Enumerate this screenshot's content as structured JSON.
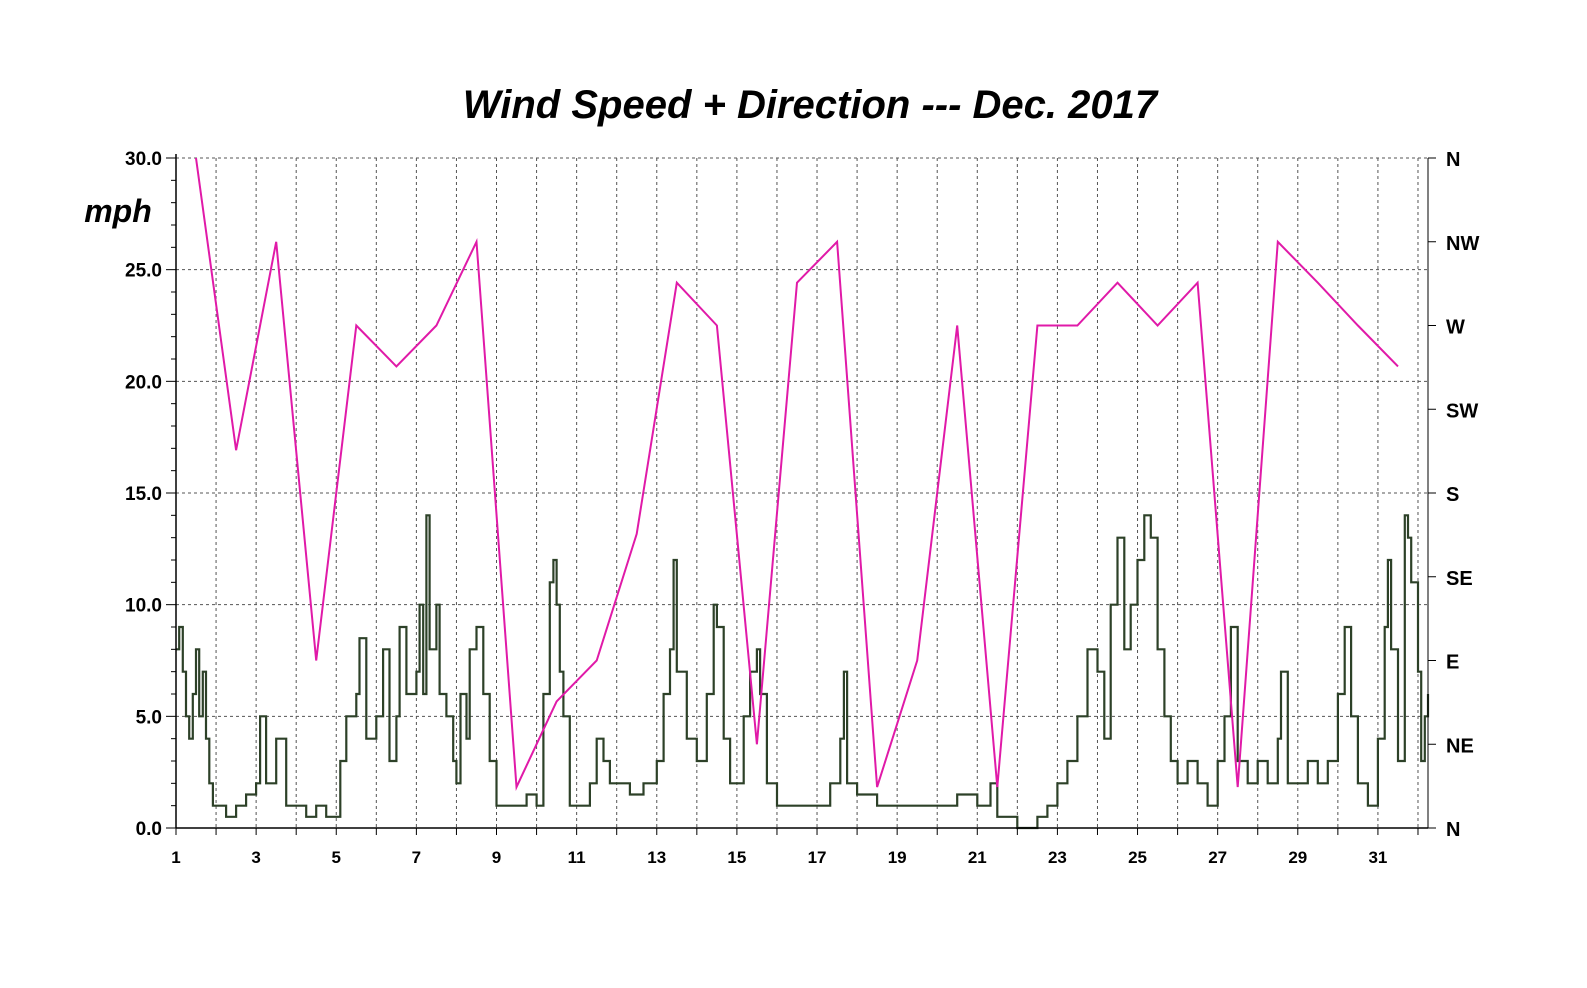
{
  "chart_data": {
    "type": "line",
    "title": "Wind Speed + Direction --- Dec. 2017",
    "ylabel": "mph",
    "xlabel": "",
    "xlim": [
      1,
      32.25
    ],
    "ylim": [
      0,
      30
    ],
    "y_ticks": [
      "0.0",
      "5.0",
      "10.0",
      "15.0",
      "20.0",
      "25.0",
      "30.0"
    ],
    "x_ticks": [
      "1",
      "3",
      "5",
      "7",
      "9",
      "11",
      "13",
      "15",
      "17",
      "19",
      "21",
      "23",
      "25",
      "27",
      "29",
      "31"
    ],
    "right_axis": {
      "labels": [
        "N",
        "NE",
        "E",
        "SE",
        "S",
        "SW",
        "W",
        "NW",
        "N"
      ],
      "degrees": [
        0,
        45,
        90,
        135,
        180,
        225,
        270,
        315,
        360
      ]
    },
    "grid": true,
    "colors": {
      "speed": "#2d4128",
      "direction": "#e01aa8"
    },
    "series": [
      {
        "type": "line",
        "axis": "right",
        "points": [
          [
            1.5,
            360
          ],
          [
            2.5,
            203
          ],
          [
            3.5,
            315
          ],
          [
            4.5,
            90
          ],
          [
            5.5,
            270
          ],
          [
            6.5,
            248
          ],
          [
            7.5,
            270
          ],
          [
            8.5,
            315
          ],
          [
            9.5,
            22
          ],
          [
            10.5,
            68
          ],
          [
            11.5,
            90
          ],
          [
            12.5,
            158
          ],
          [
            13.5,
            293
          ],
          [
            14.5,
            270
          ],
          [
            15.5,
            45
          ],
          [
            16.5,
            293
          ],
          [
            17.5,
            315
          ],
          [
            18.5,
            22
          ],
          [
            19.5,
            90
          ],
          [
            20.5,
            270
          ],
          [
            21.5,
            22
          ],
          [
            22.5,
            270
          ],
          [
            23.5,
            270
          ],
          [
            24.5,
            293
          ],
          [
            25.5,
            270
          ],
          [
            26.5,
            293
          ],
          [
            27.5,
            22
          ],
          [
            28.5,
            315
          ],
          [
            29.5,
            293
          ],
          [
            30.5,
            270
          ],
          [
            31.5,
            248
          ]
        ]
      },
      {
        "type": "line",
        "axis": "left",
        "points": [
          [
            1.0,
            8.0
          ],
          [
            1.08,
            9.0
          ],
          [
            1.17,
            7.0
          ],
          [
            1.25,
            5.0
          ],
          [
            1.33,
            4.0
          ],
          [
            1.42,
            6.0
          ],
          [
            1.5,
            8.0
          ],
          [
            1.58,
            5.0
          ],
          [
            1.67,
            7.0
          ],
          [
            1.75,
            4.0
          ],
          [
            1.83,
            2.0
          ],
          [
            1.92,
            1.0
          ],
          [
            2.0,
            1.0
          ],
          [
            2.25,
            0.5
          ],
          [
            2.5,
            1.0
          ],
          [
            2.75,
            1.5
          ],
          [
            3.0,
            2.0
          ],
          [
            3.1,
            5.0
          ],
          [
            3.25,
            2.0
          ],
          [
            3.5,
            4.0
          ],
          [
            3.75,
            1.0
          ],
          [
            4.0,
            1.0
          ],
          [
            4.25,
            0.5
          ],
          [
            4.5,
            1.0
          ],
          [
            4.75,
            0.5
          ],
          [
            5.0,
            0.5
          ],
          [
            5.1,
            3.0
          ],
          [
            5.25,
            5.0
          ],
          [
            5.5,
            6.0
          ],
          [
            5.58,
            8.5
          ],
          [
            5.75,
            4.0
          ],
          [
            6.0,
            5.0
          ],
          [
            6.17,
            8.0
          ],
          [
            6.33,
            3.0
          ],
          [
            6.5,
            5.0
          ],
          [
            6.58,
            9.0
          ],
          [
            6.75,
            6.0
          ],
          [
            7.0,
            7.0
          ],
          [
            7.08,
            10.0
          ],
          [
            7.17,
            6.0
          ],
          [
            7.25,
            14.0
          ],
          [
            7.33,
            8.0
          ],
          [
            7.5,
            10.0
          ],
          [
            7.58,
            6.0
          ],
          [
            7.75,
            5.0
          ],
          [
            7.92,
            3.0
          ],
          [
            8.0,
            2.0
          ],
          [
            8.1,
            6.0
          ],
          [
            8.25,
            4.0
          ],
          [
            8.33,
            8.0
          ],
          [
            8.5,
            9.0
          ],
          [
            8.67,
            6.0
          ],
          [
            8.83,
            3.0
          ],
          [
            9.0,
            1.0
          ],
          [
            9.25,
            1.0
          ],
          [
            9.5,
            1.0
          ],
          [
            9.75,
            1.5
          ],
          [
            10.0,
            1.0
          ],
          [
            10.17,
            6.0
          ],
          [
            10.33,
            11.0
          ],
          [
            10.42,
            12.0
          ],
          [
            10.5,
            10.0
          ],
          [
            10.58,
            7.0
          ],
          [
            10.67,
            5.0
          ],
          [
            10.83,
            1.0
          ],
          [
            11.0,
            1.0
          ],
          [
            11.33,
            2.0
          ],
          [
            11.5,
            4.0
          ],
          [
            11.67,
            3.0
          ],
          [
            11.83,
            2.0
          ],
          [
            12.0,
            2.0
          ],
          [
            12.33,
            1.5
          ],
          [
            12.67,
            2.0
          ],
          [
            13.0,
            3.0
          ],
          [
            13.17,
            6.0
          ],
          [
            13.33,
            8.0
          ],
          [
            13.42,
            12.0
          ],
          [
            13.5,
            7.0
          ],
          [
            13.75,
            4.0
          ],
          [
            14.0,
            3.0
          ],
          [
            14.25,
            6.0
          ],
          [
            14.42,
            10.0
          ],
          [
            14.5,
            9.0
          ],
          [
            14.67,
            4.0
          ],
          [
            14.83,
            2.0
          ],
          [
            15.0,
            2.0
          ],
          [
            15.17,
            5.0
          ],
          [
            15.33,
            7.0
          ],
          [
            15.5,
            8.0
          ],
          [
            15.58,
            6.0
          ],
          [
            15.75,
            2.0
          ],
          [
            16.0,
            1.0
          ],
          [
            16.5,
            1.0
          ],
          [
            17.0,
            1.0
          ],
          [
            17.33,
            2.0
          ],
          [
            17.58,
            4.0
          ],
          [
            17.67,
            7.0
          ],
          [
            17.75,
            2.0
          ],
          [
            18.0,
            1.5
          ],
          [
            18.5,
            1.0
          ],
          [
            19.0,
            1.0
          ],
          [
            19.5,
            1.0
          ],
          [
            20.0,
            1.0
          ],
          [
            20.5,
            1.5
          ],
          [
            21.0,
            1.0
          ],
          [
            21.33,
            2.0
          ],
          [
            21.5,
            0.5
          ],
          [
            22.0,
            0.0
          ],
          [
            22.5,
            0.5
          ],
          [
            22.75,
            1.0
          ],
          [
            23.0,
            2.0
          ],
          [
            23.25,
            3.0
          ],
          [
            23.5,
            5.0
          ],
          [
            23.75,
            8.0
          ],
          [
            24.0,
            7.0
          ],
          [
            24.17,
            4.0
          ],
          [
            24.33,
            10.0
          ],
          [
            24.5,
            13.0
          ],
          [
            24.67,
            8.0
          ],
          [
            24.83,
            10.0
          ],
          [
            25.0,
            12.0
          ],
          [
            25.17,
            14.0
          ],
          [
            25.33,
            13.0
          ],
          [
            25.5,
            8.0
          ],
          [
            25.67,
            5.0
          ],
          [
            25.83,
            3.0
          ],
          [
            26.0,
            2.0
          ],
          [
            26.25,
            3.0
          ],
          [
            26.5,
            2.0
          ],
          [
            26.75,
            1.0
          ],
          [
            27.0,
            3.0
          ],
          [
            27.17,
            5.0
          ],
          [
            27.33,
            9.0
          ],
          [
            27.5,
            3.0
          ],
          [
            27.75,
            2.0
          ],
          [
            28.0,
            3.0
          ],
          [
            28.25,
            2.0
          ],
          [
            28.5,
            4.0
          ],
          [
            28.58,
            7.0
          ],
          [
            28.75,
            2.0
          ],
          [
            29.0,
            2.0
          ],
          [
            29.25,
            3.0
          ],
          [
            29.5,
            2.0
          ],
          [
            29.75,
            3.0
          ],
          [
            30.0,
            6.0
          ],
          [
            30.17,
            9.0
          ],
          [
            30.33,
            5.0
          ],
          [
            30.5,
            2.0
          ],
          [
            30.75,
            1.0
          ],
          [
            31.0,
            4.0
          ],
          [
            31.17,
            9.0
          ],
          [
            31.25,
            12.0
          ],
          [
            31.33,
            8.0
          ],
          [
            31.5,
            3.0
          ],
          [
            31.67,
            14.0
          ],
          [
            31.75,
            13.0
          ],
          [
            31.83,
            11.0
          ],
          [
            32.0,
            7.0
          ],
          [
            32.08,
            3.0
          ],
          [
            32.17,
            5.0
          ],
          [
            32.25,
            6.0
          ]
        ]
      }
    ]
  }
}
